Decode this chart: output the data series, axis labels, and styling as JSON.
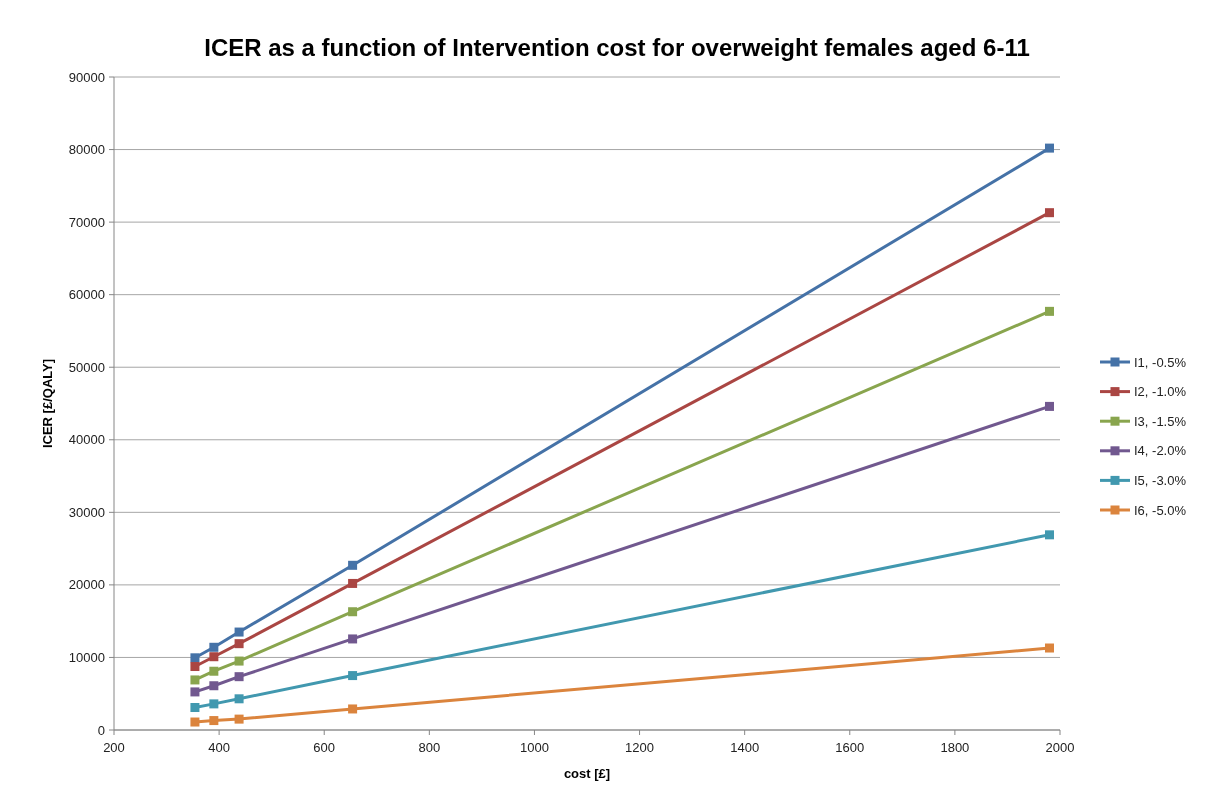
{
  "chart_data": {
    "type": "line",
    "title": "ICER as a function of Intervention cost for overweight females aged 6-11",
    "xlabel": "cost [£]",
    "ylabel": "ICER [£/QALY]",
    "x": [
      354,
      390,
      438,
      654,
      1980
    ],
    "series": [
      {
        "name": "I1, -0.5%",
        "color": "#4572a7",
        "values": [
          9950,
          11400,
          13500,
          22700,
          80200
        ]
      },
      {
        "name": "I2, -1.0%",
        "color": "#aa4643",
        "values": [
          8750,
          10100,
          11900,
          20200,
          71300
        ]
      },
      {
        "name": "I3, -1.5%",
        "color": "#89a54e",
        "values": [
          6900,
          8100,
          9500,
          16300,
          57700
        ]
      },
      {
        "name": "I4, -2.0%",
        "color": "#71588f",
        "values": [
          5250,
          6100,
          7350,
          12550,
          44600
        ]
      },
      {
        "name": "I5, -3.0%",
        "color": "#4198af",
        "values": [
          3100,
          3600,
          4300,
          7500,
          26900
        ]
      },
      {
        "name": "I6, -5.0%",
        "color": "#db843d",
        "values": [
          1100,
          1300,
          1500,
          2900,
          11300
        ]
      }
    ],
    "xlim": [
      200,
      2000
    ],
    "xticks": [
      200,
      400,
      600,
      800,
      1000,
      1200,
      1400,
      1600,
      1800,
      2000
    ],
    "ylim": [
      0,
      90000
    ],
    "yticks": [
      0,
      10000,
      20000,
      30000,
      40000,
      50000,
      60000,
      70000,
      80000,
      90000
    ],
    "grid": "y",
    "legend": "right",
    "marker": "square",
    "line_style": "solid"
  }
}
